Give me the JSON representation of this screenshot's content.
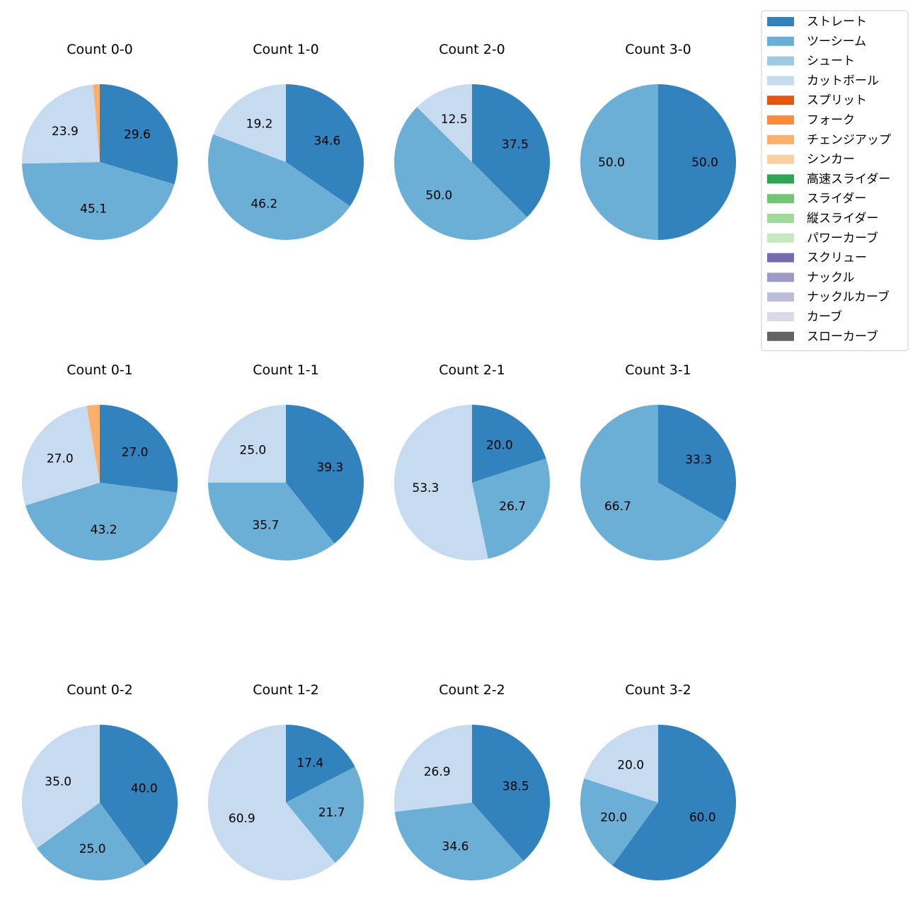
{
  "chart_data": {
    "type": "pie",
    "legend": {
      "placement": "top-right",
      "entries": [
        {
          "label": "ストレート",
          "color": "#3182bd"
        },
        {
          "label": "ツーシーム",
          "color": "#6baed6"
        },
        {
          "label": "シュート",
          "color": "#9ecae1"
        },
        {
          "label": "カットボール",
          "color": "#c6dbef"
        },
        {
          "label": "スプリット",
          "color": "#e6550d"
        },
        {
          "label": "フォーク",
          "color": "#fd8d3c"
        },
        {
          "label": "チェンジアップ",
          "color": "#fdae6b"
        },
        {
          "label": "シンカー",
          "color": "#fdd0a2"
        },
        {
          "label": "高速スライダー",
          "color": "#31a354"
        },
        {
          "label": "スライダー",
          "color": "#74c476"
        },
        {
          "label": "縦スライダー",
          "color": "#a1d99b"
        },
        {
          "label": "パワーカーブ",
          "color": "#c7e9c0"
        },
        {
          "label": "スクリュー",
          "color": "#756bb1"
        },
        {
          "label": "ナックル",
          "color": "#9e9ac8"
        },
        {
          "label": "ナックルカーブ",
          "color": "#bcbddc"
        },
        {
          "label": "カーブ",
          "color": "#dadaeb"
        },
        {
          "label": "スローカーブ",
          "color": "#636363"
        }
      ]
    },
    "pies": [
      {
        "title": "Count 0-0",
        "slices": [
          {
            "type": "ストレート",
            "value": 29.6,
            "label": "29.6"
          },
          {
            "type": "ツーシーム",
            "value": 45.1,
            "label": "45.1"
          },
          {
            "type": "カットボール",
            "value": 23.9,
            "label": "23.9"
          },
          {
            "type": "チェンジアップ",
            "value": 1.4,
            "label": ""
          }
        ]
      },
      {
        "title": "Count 1-0",
        "slices": [
          {
            "type": "ストレート",
            "value": 34.6,
            "label": "34.6"
          },
          {
            "type": "ツーシーム",
            "value": 46.2,
            "label": "46.2"
          },
          {
            "type": "カットボール",
            "value": 19.2,
            "label": "19.2"
          }
        ]
      },
      {
        "title": "Count 2-0",
        "slices": [
          {
            "type": "ストレート",
            "value": 37.5,
            "label": "37.5"
          },
          {
            "type": "ツーシーム",
            "value": 50.0,
            "label": "50.0"
          },
          {
            "type": "カットボール",
            "value": 12.5,
            "label": "12.5"
          }
        ]
      },
      {
        "title": "Count 3-0",
        "slices": [
          {
            "type": "ストレート",
            "value": 50.0,
            "label": "50.0"
          },
          {
            "type": "ツーシーム",
            "value": 50.0,
            "label": "50.0"
          }
        ]
      },
      {
        "title": "Count 0-1",
        "slices": [
          {
            "type": "ストレート",
            "value": 27.0,
            "label": "27.0"
          },
          {
            "type": "ツーシーム",
            "value": 43.2,
            "label": "43.2"
          },
          {
            "type": "カットボール",
            "value": 27.0,
            "label": "27.0"
          },
          {
            "type": "チェンジアップ",
            "value": 2.7,
            "label": ""
          }
        ]
      },
      {
        "title": "Count 1-1",
        "slices": [
          {
            "type": "ストレート",
            "value": 39.3,
            "label": "39.3"
          },
          {
            "type": "ツーシーム",
            "value": 35.7,
            "label": "35.7"
          },
          {
            "type": "カットボール",
            "value": 25.0,
            "label": "25.0"
          }
        ]
      },
      {
        "title": "Count 2-1",
        "slices": [
          {
            "type": "ストレート",
            "value": 20.0,
            "label": "20.0"
          },
          {
            "type": "ツーシーム",
            "value": 26.7,
            "label": "26.7"
          },
          {
            "type": "カットボール",
            "value": 53.3,
            "label": "53.3"
          }
        ]
      },
      {
        "title": "Count 3-1",
        "slices": [
          {
            "type": "ストレート",
            "value": 33.3,
            "label": "33.3"
          },
          {
            "type": "ツーシーム",
            "value": 66.7,
            "label": "66.7"
          }
        ]
      },
      {
        "title": "Count 0-2",
        "slices": [
          {
            "type": "ストレート",
            "value": 40.0,
            "label": "40.0"
          },
          {
            "type": "ツーシーム",
            "value": 25.0,
            "label": "25.0"
          },
          {
            "type": "カットボール",
            "value": 35.0,
            "label": "35.0"
          }
        ]
      },
      {
        "title": "Count 1-2",
        "slices": [
          {
            "type": "ストレート",
            "value": 17.4,
            "label": "17.4"
          },
          {
            "type": "ツーシーム",
            "value": 21.7,
            "label": "21.7"
          },
          {
            "type": "カットボール",
            "value": 60.9,
            "label": "60.9"
          }
        ]
      },
      {
        "title": "Count 2-2",
        "slices": [
          {
            "type": "ストレート",
            "value": 38.5,
            "label": "38.5"
          },
          {
            "type": "ツーシーム",
            "value": 34.6,
            "label": "34.6"
          },
          {
            "type": "カットボール",
            "value": 26.9,
            "label": "26.9"
          }
        ]
      },
      {
        "title": "Count 3-2",
        "slices": [
          {
            "type": "ストレート",
            "value": 60.0,
            "label": "60.0"
          },
          {
            "type": "ツーシーム",
            "value": 20.0,
            "label": "20.0"
          },
          {
            "type": "カットボール",
            "value": 20.0,
            "label": "20.0"
          }
        ]
      }
    ]
  }
}
